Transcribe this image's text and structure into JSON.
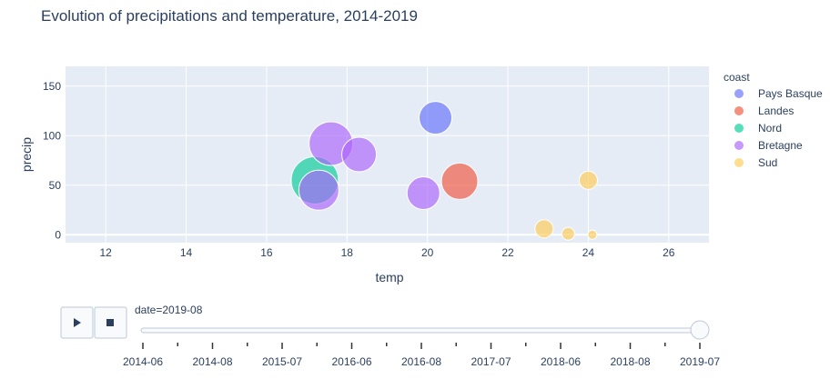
{
  "chart_data": {
    "type": "scatter",
    "title": "Evolution of precipitations and temperature, 2014-2019",
    "xlabel": "temp",
    "ylabel": "precip",
    "xlim": [
      11,
      27
    ],
    "ylim": [
      -8,
      170
    ],
    "xticks": [
      12,
      14,
      16,
      18,
      20,
      22,
      24,
      26
    ],
    "yticks": [
      0,
      50,
      100,
      150
    ],
    "legend_title": "coast",
    "series": [
      {
        "name": "Pays Basque",
        "color": "#636efa",
        "points": [
          {
            "x": 20.2,
            "y": 118,
            "size": 9
          }
        ]
      },
      {
        "name": "Landes",
        "color": "#ef553b",
        "points": [
          {
            "x": 20.8,
            "y": 54,
            "size": 10
          }
        ]
      },
      {
        "name": "Nord",
        "color": "#00cc96",
        "points": [
          {
            "x": 17.2,
            "y": 55,
            "size": 13
          }
        ]
      },
      {
        "name": "Bretagne",
        "color": "#ab63fa",
        "points": [
          {
            "x": 17.6,
            "y": 92,
            "size": 12
          },
          {
            "x": 18.3,
            "y": 81,
            "size": 9.5
          },
          {
            "x": 17.3,
            "y": 45,
            "size": 11
          },
          {
            "x": 19.9,
            "y": 42,
            "size": 9
          }
        ]
      },
      {
        "name": "Sud",
        "color": "#fecb52",
        "points": [
          {
            "x": 24.0,
            "y": 55,
            "size": 5
          },
          {
            "x": 22.9,
            "y": 6,
            "size": 5
          },
          {
            "x": 23.5,
            "y": 1,
            "size": 3.5
          },
          {
            "x": 24.1,
            "y": 0,
            "size": 2.5
          }
        ]
      }
    ]
  },
  "slider": {
    "current_label": "date=2019-08",
    "tick_labels": [
      "2014-06",
      "2014-08",
      "2015-07",
      "2016-06",
      "2016-08",
      "2017-07",
      "2018-06",
      "2018-08",
      "2019-07"
    ],
    "total_steps": 17,
    "current_step": 16
  },
  "controls": {
    "play_icon": "play-icon",
    "stop_icon": "stop-icon"
  }
}
